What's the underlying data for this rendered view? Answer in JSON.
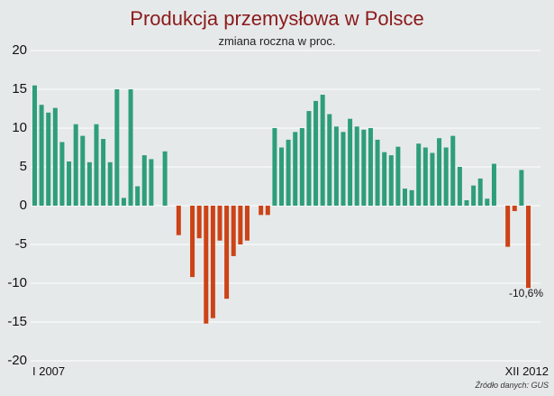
{
  "chart_data": {
    "type": "bar",
    "title": "Produkcja przemysłowa w Polsce",
    "subtitle": "zmiana roczna w proc.",
    "x_start_label": "I 2007",
    "x_end_label": "XII 2012",
    "ylim": [
      -20,
      20
    ],
    "yticks": [
      "20",
      "15",
      "10",
      "5",
      "0",
      "-5",
      "-10",
      "-15",
      "-20"
    ],
    "grid": true,
    "positive_color": "#2e9e7a",
    "negative_color": "#cc4316",
    "values": [
      15.5,
      13.0,
      12.0,
      12.6,
      8.2,
      5.7,
      10.5,
      9.0,
      5.6,
      10.5,
      8.6,
      5.6,
      15.0,
      1.0,
      15.0,
      2.5,
      6.5,
      6.0,
      0.0,
      7.0,
      0.0,
      -3.8,
      0.0,
      -9.2,
      -4.2,
      -15.2,
      -14.5,
      -4.5,
      -12.0,
      -6.5,
      -5.0,
      -4.5,
      0.0,
      -1.2,
      -1.2,
      10.0,
      7.5,
      8.5,
      9.5,
      10.0,
      12.2,
      13.5,
      14.3,
      11.8,
      10.2,
      9.5,
      11.2,
      10.2,
      9.8,
      10.0,
      8.5,
      6.9,
      6.5,
      7.6,
      2.2,
      2.0,
      8.0,
      7.5,
      6.8,
      8.7,
      7.5,
      9.0,
      5.0,
      0.7,
      2.6,
      3.5,
      0.9,
      5.4,
      0.0,
      -5.3,
      -0.7,
      4.6,
      -10.6
    ],
    "annotation": "-10,6%"
  },
  "source": "Źródło danych: GUS"
}
